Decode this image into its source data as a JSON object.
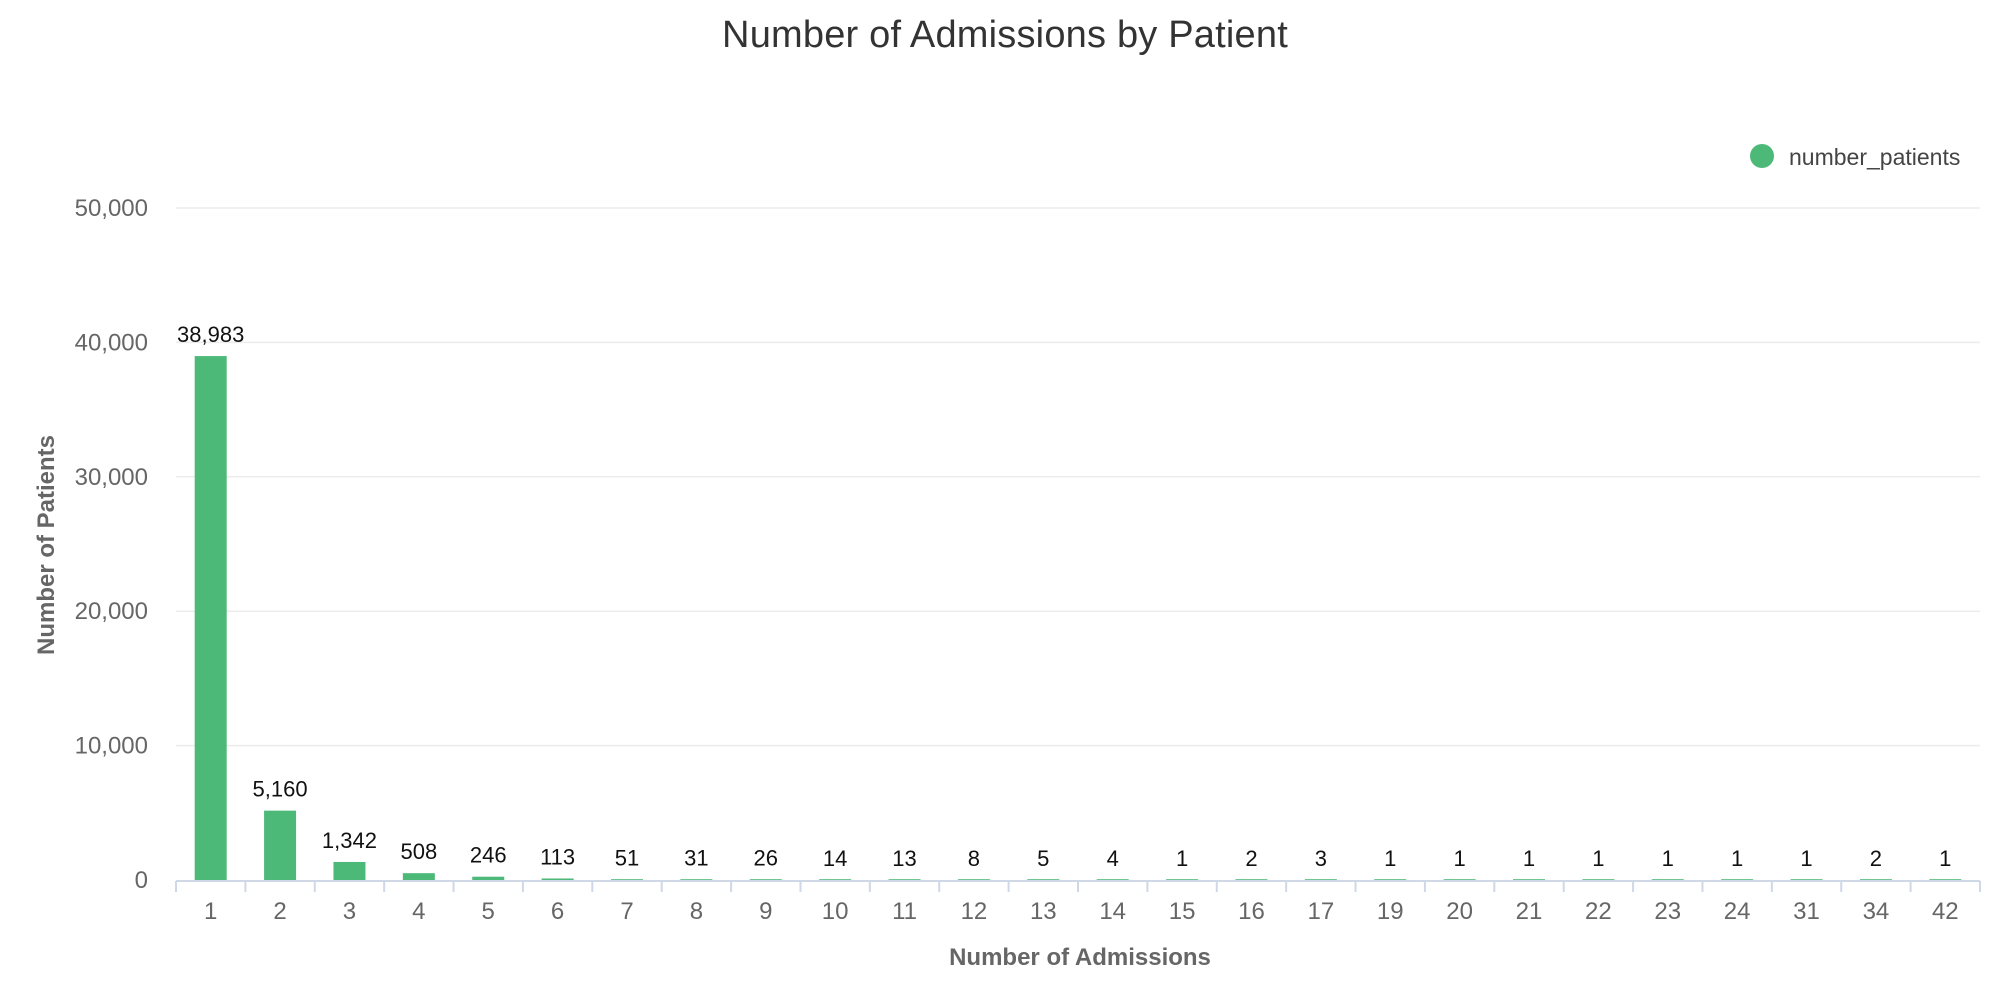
{
  "chart_data": {
    "type": "bar",
    "title": "Number of Admissions by Patient",
    "xlabel": "Number of Admissions",
    "ylabel": "Number of Patients",
    "ylim": [
      0,
      50000
    ],
    "yticks": [
      0,
      10000,
      20000,
      30000,
      40000,
      50000
    ],
    "ytick_labels": [
      "0",
      "10,000",
      "20,000",
      "30,000",
      "40,000",
      "50,000"
    ],
    "grid": true,
    "legend_position": "top-right",
    "categories": [
      "1",
      "2",
      "3",
      "4",
      "5",
      "6",
      "7",
      "8",
      "9",
      "10",
      "11",
      "12",
      "13",
      "14",
      "15",
      "16",
      "17",
      "19",
      "20",
      "21",
      "22",
      "23",
      "24",
      "31",
      "34",
      "42"
    ],
    "series": [
      {
        "name": "number_patients",
        "color": "#4DB978",
        "values": [
          38983,
          5160,
          1342,
          508,
          246,
          113,
          51,
          31,
          26,
          14,
          13,
          8,
          5,
          4,
          1,
          2,
          3,
          1,
          1,
          1,
          1,
          1,
          1,
          1,
          2,
          1
        ],
        "labels": [
          "38,983",
          "5,160",
          "1,342",
          "508",
          "246",
          "113",
          "51",
          "31",
          "26",
          "14",
          "13",
          "8",
          "5",
          "4",
          "1",
          "2",
          "3",
          "1",
          "1",
          "1",
          "1",
          "1",
          "1",
          "1",
          "2",
          "1"
        ]
      }
    ]
  }
}
